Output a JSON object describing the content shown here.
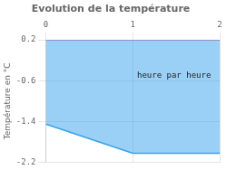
{
  "chart_data": {
    "type": "area",
    "title": "Evolution de la température",
    "ylabel": "Température en °C",
    "annotations": [
      {
        "text": "heure par heure",
        "x": 1.05,
        "y": -0.55
      }
    ],
    "x": [
      0,
      1.0,
      2.0
    ],
    "series": [
      {
        "values": [
          -1.45,
          -2.02,
          -2.02
        ]
      }
    ],
    "fill_to": 0.2,
    "xlim": [
      0,
      2
    ],
    "ylim": [
      -2.2,
      0.2
    ],
    "xticks": [
      0,
      1,
      2
    ],
    "yticks": [
      0.2,
      -0.6,
      -1.4,
      -2.2
    ],
    "grid": true
  }
}
